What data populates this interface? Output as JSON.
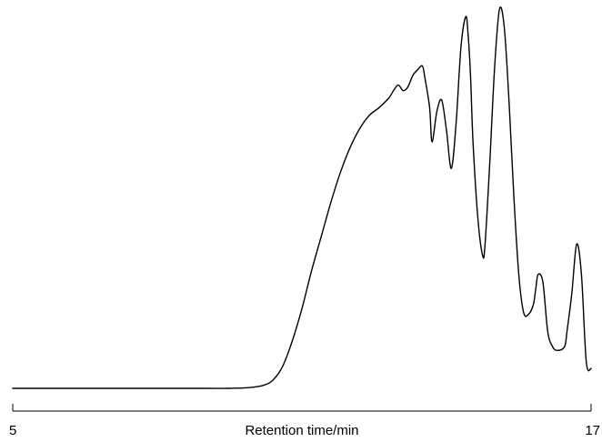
{
  "chart_data": {
    "type": "line",
    "title": "",
    "xlabel": "Retention time/min",
    "ylabel": "",
    "xlim": [
      5,
      17
    ],
    "ylim": [
      0,
      100
    ],
    "x_ticks": [
      {
        "value": 5,
        "label": "5"
      },
      {
        "value": 17,
        "label": "17"
      }
    ],
    "grid": false,
    "legend": "none",
    "line_color": "#000000",
    "series": [
      {
        "x": [
          5.0,
          5.5,
          6.0,
          7.0,
          8.0,
          9.0,
          9.5,
          9.9,
          10.2,
          10.4,
          10.6,
          10.8,
          11.0,
          11.2,
          11.4,
          11.6,
          11.8,
          12.0,
          12.2,
          12.4,
          12.6,
          12.8,
          12.9,
          13.0,
          13.1,
          13.2,
          13.3,
          13.4,
          13.5,
          13.55,
          13.65,
          13.7,
          13.8,
          13.9,
          14.0,
          14.1,
          14.2,
          14.3,
          14.4,
          14.45,
          14.5,
          14.55,
          14.65,
          14.75,
          14.8,
          14.9,
          15.0,
          15.1,
          15.2,
          15.3,
          15.4,
          15.5,
          15.6,
          15.7,
          15.8,
          15.85,
          15.9,
          16.0,
          16.1,
          16.2,
          16.3,
          16.45,
          16.5,
          16.6,
          16.7,
          16.8,
          16.9,
          17.0
        ],
        "y": [
          0,
          0,
          0,
          0,
          0,
          0,
          0,
          0.2,
          0.8,
          2.2,
          5.8,
          12.5,
          21,
          31,
          40,
          49,
          57,
          63.5,
          68.5,
          72,
          74,
          76.5,
          78.5,
          80,
          78.5,
          79.5,
          82.5,
          84,
          85,
          82,
          74,
          65,
          73,
          76,
          68,
          58,
          70,
          90,
          98,
          93,
          82,
          65,
          45,
          35,
          38,
          60,
          85,
          100,
          95,
          75,
          50,
          30,
          20,
          19.5,
          22,
          26,
          30,
          28,
          15,
          11,
          10,
          11,
          15,
          25,
          38,
          30,
          7,
          5.2
        ]
      }
    ]
  }
}
